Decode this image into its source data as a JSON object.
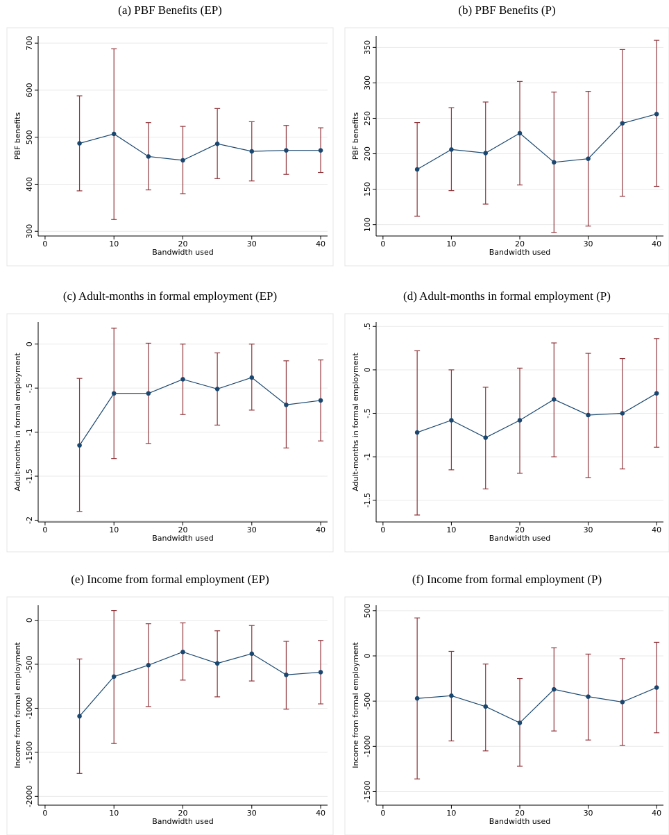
{
  "chart_data": [
    {
      "type": "errorbar",
      "title": "(a) PBF Benefits (EP)",
      "xlabel": "Bandwidth used",
      "ylabel": "PBF benefits",
      "x": [
        5,
        10,
        15,
        20,
        25,
        30,
        35,
        40
      ],
      "values": [
        487,
        507,
        459,
        451,
        486,
        470,
        472,
        472
      ],
      "lower": [
        386,
        325,
        388,
        380,
        412,
        407,
        421,
        425
      ],
      "upper": [
        588,
        688,
        531,
        523,
        561,
        533,
        525,
        520
      ],
      "xlim": [
        -1,
        41
      ],
      "xticks": [
        0,
        10,
        20,
        30,
        40
      ],
      "ylim": [
        290,
        715
      ],
      "yticks": [
        300,
        400,
        500,
        600,
        700
      ],
      "line_color": "#1a476f",
      "bar_color": "#90353b",
      "grid": true
    },
    {
      "type": "errorbar",
      "title": "(b) PBF Benefits (P)",
      "xlabel": "Bandwidth used",
      "ylabel": "PBF benefits",
      "x": [
        5,
        10,
        15,
        20,
        25,
        30,
        35,
        40
      ],
      "values": [
        178,
        206,
        201,
        229,
        188,
        193,
        243,
        256
      ],
      "lower": [
        112,
        148,
        129,
        156,
        89,
        98,
        140,
        154
      ],
      "upper": [
        244,
        265,
        273,
        302,
        287,
        288,
        347,
        360
      ],
      "xlim": [
        -1,
        41
      ],
      "xticks": [
        0,
        10,
        20,
        30,
        40
      ],
      "ylim": [
        84,
        366
      ],
      "yticks": [
        100,
        150,
        200,
        250,
        300,
        350
      ],
      "line_color": "#1a476f",
      "bar_color": "#90353b",
      "grid": true
    },
    {
      "type": "errorbar",
      "title": "(c) Adult-months in formal employment (EP)",
      "xlabel": "Bandwidth used",
      "ylabel": "Adult-months in formal employment",
      "x": [
        5,
        10,
        15,
        20,
        25,
        30,
        35,
        40
      ],
      "values": [
        -1.15,
        -0.56,
        -0.56,
        -0.4,
        -0.51,
        -0.38,
        -0.69,
        -0.64
      ],
      "lower": [
        -1.9,
        -1.3,
        -1.13,
        -0.8,
        -0.92,
        -0.75,
        -1.18,
        -1.1
      ],
      "upper": [
        -0.39,
        0.18,
        0.01,
        0,
        -0.1,
        0,
        -0.19,
        -0.18
      ],
      "xlim": [
        -1,
        41
      ],
      "xticks": [
        0,
        10,
        20,
        30,
        40
      ],
      "ylim": [
        -2.02,
        0.25
      ],
      "yticks": [
        {
          "value": -2,
          "label": "-2"
        },
        {
          "value": -1.5,
          "label": "-1.5"
        },
        {
          "value": -1,
          "label": "-1"
        },
        {
          "value": -0.5,
          "label": "-.5"
        },
        0
      ],
      "line_color": "#1a476f",
      "bar_color": "#90353b",
      "grid": true
    },
    {
      "type": "errorbar",
      "title": "(d) Adult-months in formal employment (P)",
      "xlabel": "Bandwidth used",
      "ylabel": "Adult-months in formal employment",
      "x": [
        5,
        10,
        15,
        20,
        25,
        30,
        35,
        40
      ],
      "values": [
        -0.72,
        -0.58,
        -0.78,
        -0.58,
        -0.34,
        -0.52,
        -0.5,
        -0.27
      ],
      "lower": [
        -1.67,
        -1.15,
        -1.37,
        -1.19,
        -1.0,
        -1.24,
        -1.14,
        -0.89
      ],
      "upper": [
        0.22,
        0,
        -0.2,
        0.02,
        0.31,
        0.19,
        0.13,
        0.36
      ],
      "xlim": [
        -1,
        41
      ],
      "xticks": [
        0,
        10,
        20,
        30,
        40
      ],
      "ylim": [
        -1.75,
        0.55
      ],
      "yticks": [
        {
          "value": -1.5,
          "label": "-1.5"
        },
        {
          "value": -1,
          "label": "-1"
        },
        {
          "value": -0.5,
          "label": "-.5"
        },
        0,
        {
          "value": 0.5,
          "label": ".5"
        }
      ],
      "line_color": "#1a476f",
      "bar_color": "#90353b",
      "grid": true
    },
    {
      "type": "errorbar",
      "title": "(e) Income from formal employment (EP)",
      "xlabel": "Bandwidth used",
      "ylabel": "Income from formal employment",
      "x": [
        5,
        10,
        15,
        20,
        25,
        30,
        35,
        40
      ],
      "values": [
        -1090,
        -640,
        -510,
        -360,
        -490,
        -380,
        -620,
        -590
      ],
      "lower": [
        -1740,
        -1400,
        -980,
        -680,
        -870,
        -690,
        -1010,
        -950
      ],
      "upper": [
        -440,
        110,
        -40,
        -30,
        -120,
        -60,
        -240,
        -230
      ],
      "xlim": [
        -1,
        41
      ],
      "xticks": [
        0,
        10,
        20,
        30,
        40
      ],
      "ylim": [
        -2100,
        170
      ],
      "yticks": [
        -2000,
        -1500,
        -1000,
        -500,
        0
      ],
      "line_color": "#1a476f",
      "bar_color": "#90353b",
      "grid": true
    },
    {
      "type": "errorbar",
      "title": "(f) Income from formal employment (P)",
      "xlabel": "Bandwidth used",
      "ylabel": "Income from formal employment",
      "x": [
        5,
        10,
        15,
        20,
        25,
        30,
        35,
        40
      ],
      "values": [
        -470,
        -440,
        -560,
        -740,
        -370,
        -450,
        -510,
        -350
      ],
      "lower": [
        -1360,
        -940,
        -1050,
        -1220,
        -830,
        -930,
        -990,
        -850
      ],
      "upper": [
        420,
        50,
        -90,
        -250,
        90,
        20,
        -30,
        150
      ],
      "xlim": [
        -1,
        41
      ],
      "xticks": [
        0,
        10,
        20,
        30,
        40
      ],
      "ylim": [
        -1650,
        560
      ],
      "yticks": [
        -1500,
        -1000,
        -500,
        0,
        500
      ],
      "line_color": "#1a476f",
      "bar_color": "#90353b",
      "grid": true
    }
  ]
}
